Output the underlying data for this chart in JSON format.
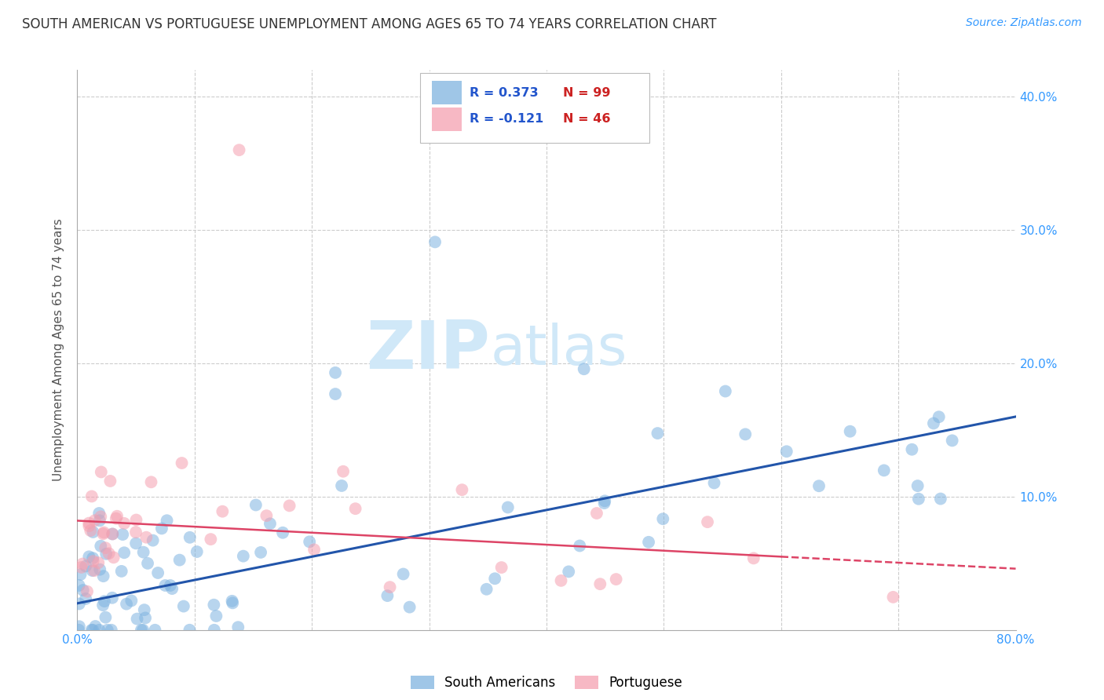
{
  "title": "SOUTH AMERICAN VS PORTUGUESE UNEMPLOYMENT AMONG AGES 65 TO 74 YEARS CORRELATION CHART",
  "source": "Source: ZipAtlas.com",
  "ylabel": "Unemployment Among Ages 65 to 74 years",
  "xlim": [
    0.0,
    0.8
  ],
  "ylim": [
    0.0,
    0.42
  ],
  "xticks": [
    0.0,
    0.1,
    0.2,
    0.3,
    0.4,
    0.5,
    0.6,
    0.7,
    0.8
  ],
  "xticklabels_show": [
    "0.0%",
    "",
    "",
    "",
    "",
    "",
    "",
    "",
    "80.0%"
  ],
  "yticks": [
    0.0,
    0.1,
    0.2,
    0.3,
    0.4
  ],
  "yticklabels_right": [
    "",
    "10.0%",
    "20.0%",
    "30.0%",
    "40.0%"
  ],
  "blue_color": "#7fb3e0",
  "pink_color": "#f5a0b0",
  "blue_line_color": "#2255aa",
  "pink_line_color": "#dd4466",
  "legend_R1": "R = 0.373",
  "legend_N1": "N = 99",
  "legend_R2": "R = -0.121",
  "legend_N2": "N = 46",
  "watermark_zip": "ZIP",
  "watermark_atlas": "atlas",
  "watermark_color": "#d0e8f8",
  "blue_slope": 0.175,
  "blue_intercept": 0.02,
  "pink_slope": -0.045,
  "pink_intercept": 0.082,
  "grid_color": "#cccccc",
  "grid_linestyle": "--",
  "background_color": "#ffffff"
}
